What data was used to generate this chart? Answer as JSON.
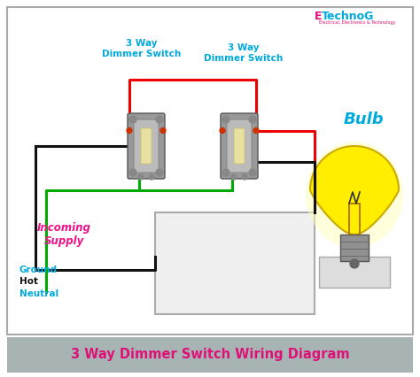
{
  "bg_color": "#ffffff",
  "title_bar_color": "#a8b4b4",
  "title_text": "3 Way Dimmer Switch Wiring Diagram",
  "title_text_color": "#dd1177",
  "title_fontsize": 10.5,
  "logo_E_color": "#dd1177",
  "logo_technog_color": "#00aadd",
  "logo_sub_color": "#dd1177",
  "switch1_label": "3 Way\nDimmer Switch",
  "switch2_label": "3 Way\nDimmer Switch",
  "switch_label_color": "#00aadd",
  "bulb_label": "Bulb",
  "bulb_label_color": "#00aadd",
  "incoming_label": "Incoming\nSupply",
  "incoming_color": "#ee1188",
  "ground_label": "Ground",
  "ground_color": "#00aadd",
  "hot_label": "Hot",
  "hot_color": "#111111",
  "neutral_label": "Neutral",
  "neutral_color": "#00aadd",
  "wire_red_color": "#ee0000",
  "wire_black_color": "#111111",
  "wire_green_color": "#00aa00",
  "switch_body_color": "#999999",
  "switch_face_color": "#bbbbbb",
  "switch_lever_color": "#e8e0a0",
  "bulb_yellow": "#ffee00",
  "bulb_filament": "#aa6600",
  "bulb_base_color": "#888888",
  "box_edge_color": "#aaaaaa",
  "box_face_color": "#f0f0f0"
}
